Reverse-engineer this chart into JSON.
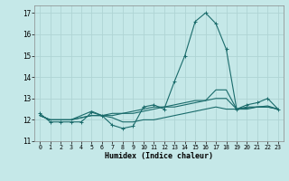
{
  "title": "",
  "xlabel": "Humidex (Indice chaleur)",
  "xlim": [
    -0.5,
    23.5
  ],
  "ylim": [
    11.0,
    17.35
  ],
  "yticks": [
    11,
    12,
    13,
    14,
    15,
    16,
    17
  ],
  "xticks": [
    0,
    1,
    2,
    3,
    4,
    5,
    6,
    7,
    8,
    9,
    10,
    11,
    12,
    13,
    14,
    15,
    16,
    17,
    18,
    19,
    20,
    21,
    22,
    23
  ],
  "bg_color": "#c5e8e8",
  "grid_color": "#afd4d4",
  "line_color": "#1a6b6b",
  "line1_y": [
    12.3,
    11.9,
    11.9,
    11.9,
    11.9,
    12.35,
    12.2,
    11.75,
    11.6,
    11.7,
    12.6,
    12.7,
    12.5,
    13.8,
    15.0,
    16.6,
    17.0,
    16.5,
    15.3,
    12.5,
    12.7,
    12.8,
    13.0,
    12.5
  ],
  "line2_y": [
    12.2,
    12.0,
    12.0,
    12.0,
    12.1,
    12.2,
    12.2,
    12.3,
    12.3,
    12.4,
    12.5,
    12.6,
    12.6,
    12.7,
    12.8,
    12.9,
    12.9,
    13.0,
    13.0,
    12.5,
    12.55,
    12.6,
    12.65,
    12.5
  ],
  "line3_y": [
    12.2,
    12.0,
    12.0,
    12.0,
    12.2,
    12.4,
    12.2,
    12.1,
    11.9,
    11.9,
    12.0,
    12.0,
    12.1,
    12.2,
    12.3,
    12.4,
    12.5,
    12.6,
    12.5,
    12.5,
    12.6,
    12.6,
    12.6,
    12.5
  ],
  "line4_y": [
    12.2,
    12.0,
    12.0,
    12.0,
    12.1,
    12.2,
    12.2,
    12.2,
    12.3,
    12.3,
    12.4,
    12.5,
    12.6,
    12.6,
    12.7,
    12.8,
    12.9,
    13.4,
    13.4,
    12.5,
    12.5,
    12.6,
    12.6,
    12.5
  ]
}
